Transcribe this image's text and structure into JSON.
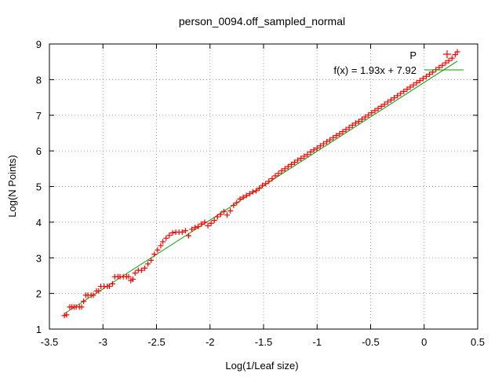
{
  "chart_data": {
    "type": "scatter",
    "title": "person_0094.off_sampled_normal",
    "xlabel": "Log(1/Leaf size)",
    "ylabel": "Log(N Points)",
    "xlim": [
      -3.5,
      0.5
    ],
    "ylim": [
      1,
      9
    ],
    "x_ticks": [
      "-3.5",
      "-3",
      "-2.5",
      "-2",
      "-1.5",
      "-1",
      "-0.5",
      "0",
      "0.5"
    ],
    "y_ticks": [
      "1",
      "2",
      "3",
      "4",
      "5",
      "6",
      "7",
      "8",
      "9"
    ],
    "grid": true,
    "legend_position": "top-right",
    "series": [
      {
        "name": "P",
        "marker": "+",
        "color": "#ff0000",
        "points": [
          [
            -3.36,
            1.38
          ],
          [
            -3.34,
            1.4
          ],
          [
            -3.31,
            1.62
          ],
          [
            -3.29,
            1.62
          ],
          [
            -3.27,
            1.62
          ],
          [
            -3.25,
            1.62
          ],
          [
            -3.22,
            1.62
          ],
          [
            -3.2,
            1.62
          ],
          [
            -3.18,
            1.78
          ],
          [
            -3.16,
            1.95
          ],
          [
            -3.14,
            1.95
          ],
          [
            -3.11,
            1.95
          ],
          [
            -3.09,
            1.95
          ],
          [
            -3.06,
            2.07
          ],
          [
            -3.04,
            2.07
          ],
          [
            -3.02,
            2.2
          ],
          [
            -2.99,
            2.2
          ],
          [
            -2.96,
            2.2
          ],
          [
            -2.94,
            2.2
          ],
          [
            -2.91,
            2.27
          ],
          [
            -2.89,
            2.47
          ],
          [
            -2.86,
            2.47
          ],
          [
            -2.84,
            2.47
          ],
          [
            -2.81,
            2.47
          ],
          [
            -2.78,
            2.47
          ],
          [
            -2.76,
            2.47
          ],
          [
            -2.74,
            2.36
          ],
          [
            -2.72,
            2.4
          ],
          [
            -2.7,
            2.57
          ],
          [
            -2.67,
            2.65
          ],
          [
            -2.64,
            2.65
          ],
          [
            -2.61,
            2.71
          ],
          [
            -2.58,
            2.83
          ],
          [
            -2.55,
            2.93
          ],
          [
            -2.52,
            3.1
          ],
          [
            -2.49,
            3.22
          ],
          [
            -2.46,
            3.34
          ],
          [
            -2.44,
            3.45
          ],
          [
            -2.41,
            3.55
          ],
          [
            -2.38,
            3.63
          ],
          [
            -2.35,
            3.7
          ],
          [
            -2.32,
            3.72
          ],
          [
            -2.29,
            3.72
          ],
          [
            -2.26,
            3.72
          ],
          [
            -2.23,
            3.76
          ],
          [
            -2.2,
            3.62
          ],
          [
            -2.17,
            3.8
          ],
          [
            -2.14,
            3.85
          ],
          [
            -2.11,
            3.88
          ],
          [
            -2.08,
            3.95
          ],
          [
            -2.05,
            4.0
          ],
          [
            -2.02,
            3.9
          ],
          [
            -1.99,
            3.97
          ],
          [
            -1.96,
            4.05
          ],
          [
            -1.93,
            4.15
          ],
          [
            -1.9,
            4.22
          ],
          [
            -1.87,
            4.3
          ],
          [
            -1.84,
            4.2
          ],
          [
            -1.81,
            4.32
          ],
          [
            -1.78,
            4.47
          ],
          [
            -1.75,
            4.55
          ],
          [
            -1.72,
            4.65
          ],
          [
            -1.69,
            4.7
          ],
          [
            -1.66,
            4.75
          ],
          [
            -1.63,
            4.8
          ],
          [
            -1.6,
            4.85
          ],
          [
            -1.57,
            4.88
          ],
          [
            -1.54,
            4.95
          ],
          [
            -1.51,
            5.03
          ],
          [
            -1.48,
            5.08
          ],
          [
            -1.45,
            5.15
          ],
          [
            -1.42,
            5.22
          ],
          [
            -1.39,
            5.3
          ],
          [
            -1.36,
            5.37
          ],
          [
            -1.33,
            5.44
          ],
          [
            -1.3,
            5.5
          ],
          [
            -1.27,
            5.56
          ],
          [
            -1.24,
            5.62
          ],
          [
            -1.21,
            5.68
          ],
          [
            -1.18,
            5.74
          ],
          [
            -1.15,
            5.79
          ],
          [
            -1.12,
            5.85
          ],
          [
            -1.09,
            5.9
          ],
          [
            -1.06,
            5.97
          ],
          [
            -1.03,
            6.03
          ],
          [
            -1.0,
            6.08
          ],
          [
            -0.97,
            6.14
          ],
          [
            -0.94,
            6.2
          ],
          [
            -0.91,
            6.26
          ],
          [
            -0.88,
            6.31
          ],
          [
            -0.85,
            6.37
          ],
          [
            -0.82,
            6.43
          ],
          [
            -0.79,
            6.48
          ],
          [
            -0.76,
            6.54
          ],
          [
            -0.73,
            6.6
          ],
          [
            -0.7,
            6.66
          ],
          [
            -0.67,
            6.72
          ],
          [
            -0.64,
            6.78
          ],
          [
            -0.61,
            6.83
          ],
          [
            -0.58,
            6.89
          ],
          [
            -0.55,
            6.95
          ],
          [
            -0.52,
            7.01
          ],
          [
            -0.49,
            7.07
          ],
          [
            -0.46,
            7.13
          ],
          [
            -0.43,
            7.19
          ],
          [
            -0.4,
            7.25
          ],
          [
            -0.37,
            7.31
          ],
          [
            -0.34,
            7.37
          ],
          [
            -0.31,
            7.43
          ],
          [
            -0.28,
            7.49
          ],
          [
            -0.25,
            7.55
          ],
          [
            -0.22,
            7.61
          ],
          [
            -0.19,
            7.67
          ],
          [
            -0.16,
            7.73
          ],
          [
            -0.13,
            7.79
          ],
          [
            -0.1,
            7.85
          ],
          [
            -0.07,
            7.91
          ],
          [
            -0.04,
            7.97
          ],
          [
            -0.01,
            8.03
          ],
          [
            0.02,
            8.09
          ],
          [
            0.05,
            8.15
          ],
          [
            0.08,
            8.21
          ],
          [
            0.11,
            8.28
          ],
          [
            0.14,
            8.34
          ],
          [
            0.17,
            8.4
          ],
          [
            0.2,
            8.47
          ],
          [
            0.23,
            8.53
          ],
          [
            0.26,
            8.6
          ],
          [
            0.29,
            8.7
          ],
          [
            0.31,
            8.78
          ]
        ]
      },
      {
        "name": "f(x) = 1.93x + 7.92",
        "type": "line",
        "color": "#00a000",
        "slope": 1.93,
        "intercept": 7.92,
        "x_range": [
          -3.36,
          0.31
        ]
      }
    ]
  }
}
